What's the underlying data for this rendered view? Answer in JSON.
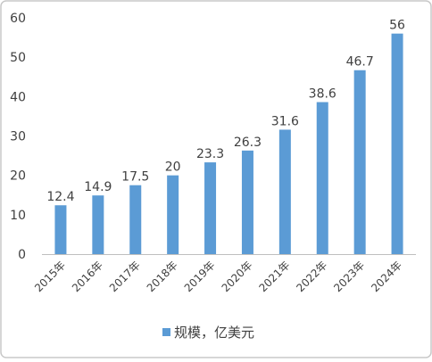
{
  "chart_data": {
    "type": "bar",
    "categories": [
      "2015年",
      "2016年",
      "2017年",
      "2018年",
      "2019年",
      "2020年",
      "2021年",
      "2022年",
      "2023年",
      "2024年"
    ],
    "series": [
      {
        "name": "规模，亿美元",
        "values": [
          12.4,
          14.9,
          17.5,
          20,
          23.3,
          26.3,
          31.6,
          38.6,
          46.7,
          56
        ],
        "labels": [
          "12.4",
          "14.9",
          "17.5",
          "20",
          "23.3",
          "26.3",
          "31.6",
          "38.6",
          "46.7",
          "56"
        ]
      }
    ],
    "ylim": [
      0,
      60
    ],
    "yticks": [
      "0",
      "10",
      "20",
      "30",
      "40",
      "50",
      "60"
    ],
    "grid": false,
    "legend_position": "bottom",
    "bar_color": "#5B9BD5",
    "axis_color": "#bfbfbf",
    "text_color": "#404040",
    "border_color": "#c8c8c8"
  }
}
